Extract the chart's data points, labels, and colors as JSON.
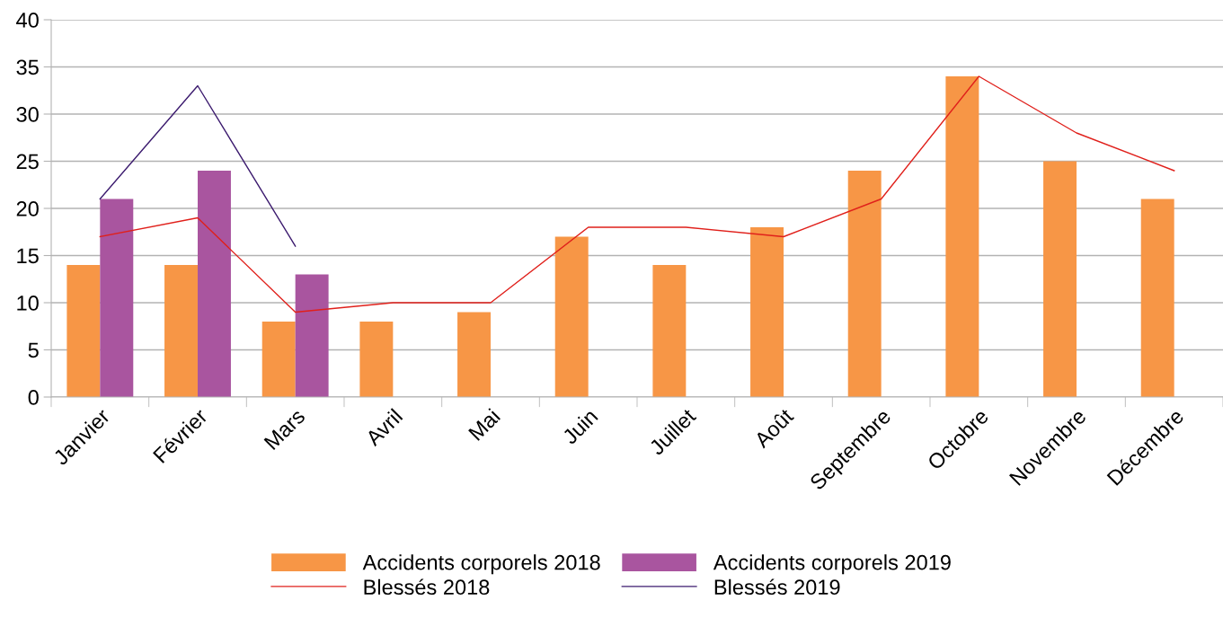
{
  "chart_data": {
    "type": "bar",
    "categories": [
      "Janvier",
      "Février",
      "Mars",
      "Avril",
      "Mai",
      "Juin",
      "Juillet",
      "Août",
      "Septembre",
      "Octobre",
      "Novembre",
      "Décembre"
    ],
    "series": [
      {
        "name": "Accidents corporels 2018",
        "color": "#f79646",
        "values": [
          14,
          14,
          8,
          8,
          9,
          17,
          14,
          18,
          24,
          34,
          25,
          21
        ]
      },
      {
        "name": "Accidents corporels 2019",
        "color": "#a9559f",
        "values": [
          21,
          24,
          13,
          null,
          null,
          null,
          null,
          null,
          null,
          null,
          null,
          null
        ]
      },
      {
        "name": "Blessés 2018",
        "type": "line",
        "color": "#e0201b",
        "values": [
          17,
          19,
          9,
          10,
          10,
          18,
          18,
          17,
          21,
          34,
          28,
          24
        ]
      },
      {
        "name": "Blessés 2019",
        "type": "line",
        "color": "#3b1a6e",
        "values": [
          21,
          33,
          16,
          null,
          null,
          null,
          null,
          null,
          null,
          null,
          null,
          null
        ]
      }
    ],
    "ylim": [
      0,
      40
    ],
    "yticks": [
      0,
      5,
      10,
      15,
      20,
      25,
      30,
      35,
      40
    ],
    "grid": "y",
    "legend": "bottom",
    "marker": "none",
    "line_style": "solid"
  }
}
